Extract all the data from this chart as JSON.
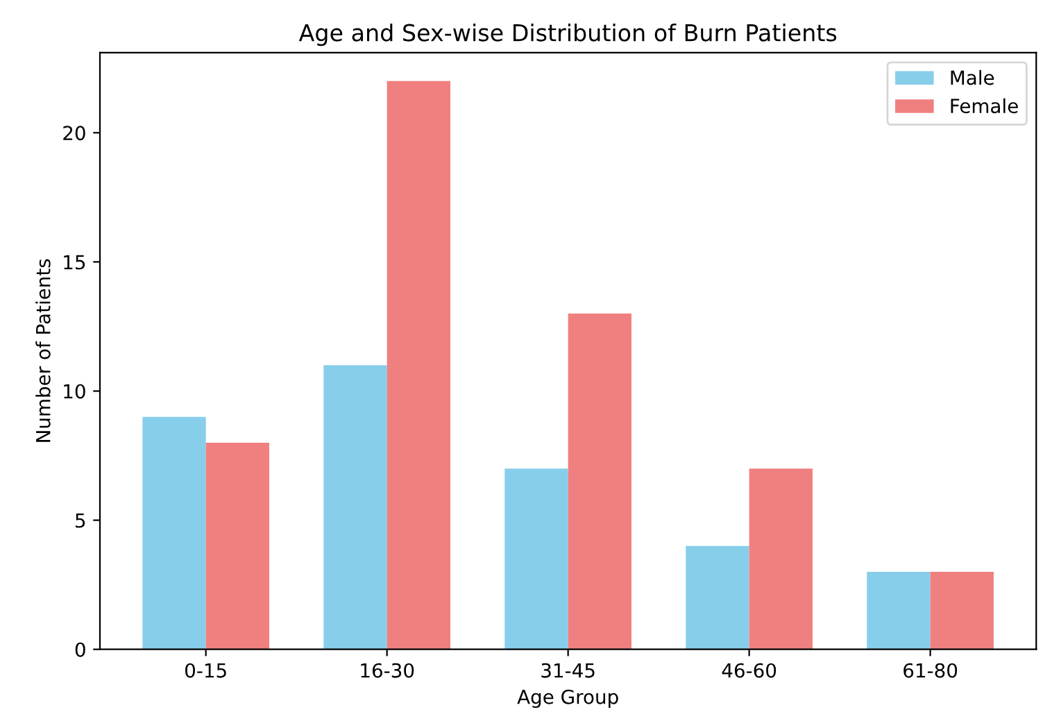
{
  "chart_data": {
    "type": "bar",
    "title": "Age and Sex-wise Distribution of Burn Patients",
    "xlabel": "Age Group",
    "ylabel": "Number of Patients",
    "categories": [
      "0-15",
      "16-30",
      "31-45",
      "46-60",
      "61-80"
    ],
    "series": [
      {
        "name": "Male",
        "color": "#87ceeb",
        "values": [
          9,
          11,
          7,
          4,
          3
        ]
      },
      {
        "name": "Female",
        "color": "#f08080",
        "values": [
          8,
          22,
          13,
          7,
          3
        ]
      }
    ],
    "ylim": [
      0,
      23.1
    ],
    "yticks": [
      0,
      5,
      10,
      15,
      20
    ],
    "grid": false,
    "legend": "top right"
  }
}
